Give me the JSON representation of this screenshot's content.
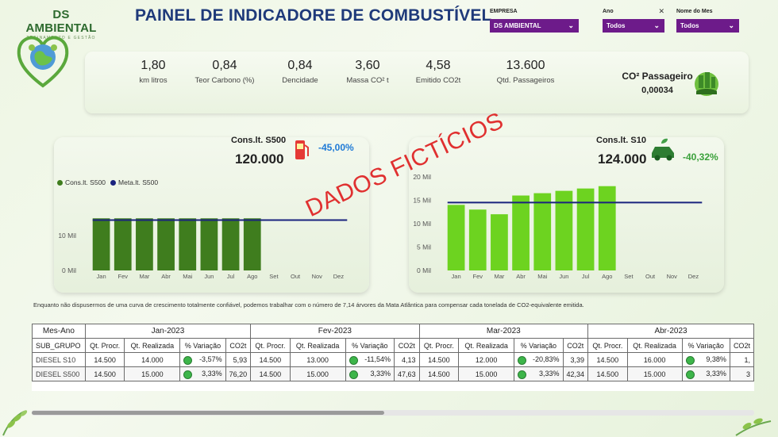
{
  "brand": {
    "name": "DS AMBIENTAL",
    "tagline": "TREINAMENTO E GESTÃO"
  },
  "page": {
    "title": "PAINEL DE INDICADORE DE COMBUSTÍVEL"
  },
  "filters": [
    {
      "label": "EMPRESA",
      "value": "DS AMBIENTAL"
    },
    {
      "label": "Ano",
      "value": "Todos"
    },
    {
      "label": "Nome do Mes",
      "value": "Todos"
    }
  ],
  "kpis": [
    {
      "value": "1,80",
      "label": "km litros"
    },
    {
      "value": "0,84",
      "label": "Teor Carbono (%)"
    },
    {
      "value": "0,84",
      "label": "Dencidade"
    },
    {
      "value": "3,60",
      "label": "Massa CO² t"
    },
    {
      "value": "4,58",
      "label": "Emitido CO2t"
    },
    {
      "value": "13.600",
      "label": "Qtd. Passageiros"
    }
  ],
  "co2_passageiro": {
    "label": "CO² Passageiro",
    "value": "0,00034"
  },
  "cards": {
    "s500": {
      "title": "Cons.lt. S500",
      "total": "120.000",
      "pct": "-45,00%",
      "pct_color": "#1e7ad6"
    },
    "s10": {
      "title": "Cons.lt. S10",
      "total": "124.000",
      "pct": "-40,32%",
      "pct_color": "#3aa03a"
    }
  },
  "watermark": "DADOS FICTÍCIOS",
  "footnote": "Enquanto não dispusermos de uma curva de crescimento totalmente confiável, podemos trabalhar com o número de 7,14 árvores da Mata Atlântica para compensar cada tonelada de CO2-equivalente emitida.",
  "chart_data": [
    {
      "type": "bar",
      "categories": [
        "Jan",
        "Fev",
        "Mar",
        "Abr",
        "Mai",
        "Jun",
        "Jul",
        "Ago",
        "Set",
        "Out",
        "Nov",
        "Dez"
      ],
      "series": [
        {
          "name": "Cons.lt. S500",
          "values": [
            15000,
            15000,
            15000,
            15000,
            15000,
            15000,
            15000,
            15000,
            null,
            null,
            null,
            null
          ]
        },
        {
          "name": "Meta.lt. S500",
          "values": [
            14500,
            14500,
            14500,
            14500,
            14500,
            14500,
            14500,
            14500,
            14500,
            14500,
            14500,
            14500
          ]
        }
      ],
      "yticks": [
        "0 Mil",
        "10 Mil"
      ],
      "ylim": [
        0,
        21000
      ],
      "legend": "top-left",
      "colors": [
        "#3f7d1e",
        "#1a237e"
      ]
    },
    {
      "type": "bar",
      "categories": [
        "Jan",
        "Fev",
        "Mar",
        "Abr",
        "Mai",
        "Jun",
        "Jul",
        "Ago",
        "Set",
        "Out",
        "Nov",
        "Dez"
      ],
      "series": [
        {
          "values": [
            14000,
            13000,
            12000,
            16000,
            16500,
            17000,
            17500,
            18000,
            null,
            null,
            null,
            null
          ]
        },
        {
          "values": [
            14500,
            14500,
            14500,
            14500,
            14500,
            14500,
            14500,
            14500,
            14500,
            14500,
            14500,
            14500
          ]
        }
      ],
      "yticks": [
        "0 Mil",
        "5 Mil",
        "10 Mil",
        "15 Mil",
        "20 Mil"
      ],
      "ylim": [
        0,
        21000
      ],
      "colors": [
        "#6dd320",
        "#1a237e"
      ]
    }
  ],
  "table": {
    "corner_month": "Mes-Ano",
    "corner_group": "SUB_GRUPO",
    "months": [
      "Jan-2023",
      "Fev-2023",
      "Mar-2023",
      "Abr-2023"
    ],
    "columns": [
      "Qt. Procr.",
      "Qt. Realizada",
      "% Variação",
      "CO2t"
    ],
    "rows": [
      {
        "group": "DIESEL S10",
        "cells": [
          [
            "14.500",
            "14.000",
            "-3,57%",
            "5,93"
          ],
          [
            "14.500",
            "13.000",
            "-11,54%",
            "4,13"
          ],
          [
            "14.500",
            "12.000",
            "-20,83%",
            "3,39"
          ],
          [
            "14.500",
            "16.000",
            "9,38%",
            "1,"
          ]
        ]
      },
      {
        "group": "DIESEL S500",
        "cells": [
          [
            "14.500",
            "15.000",
            "3,33%",
            "76,20"
          ],
          [
            "14.500",
            "15.000",
            "3,33%",
            "47,63"
          ],
          [
            "14.500",
            "15.000",
            "3,33%",
            "42,34"
          ],
          [
            "14.500",
            "15.000",
            "3,33%",
            "3"
          ]
        ]
      }
    ]
  }
}
